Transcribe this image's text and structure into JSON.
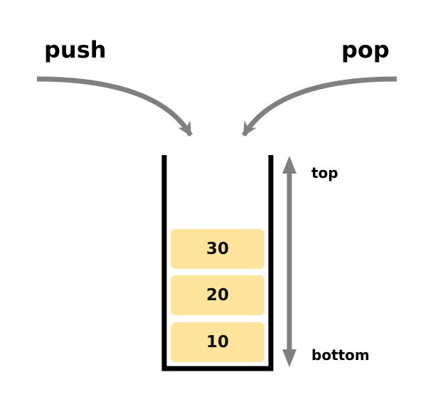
{
  "labels": {
    "push": "push",
    "pop": "pop",
    "top": "top",
    "bottom": "bottom"
  },
  "stack": {
    "items": [
      "30",
      "20",
      "10"
    ]
  },
  "colors": {
    "item_fill": "#FFE49E",
    "arrow": "#808080",
    "container": "#000000",
    "text": "#000000"
  }
}
